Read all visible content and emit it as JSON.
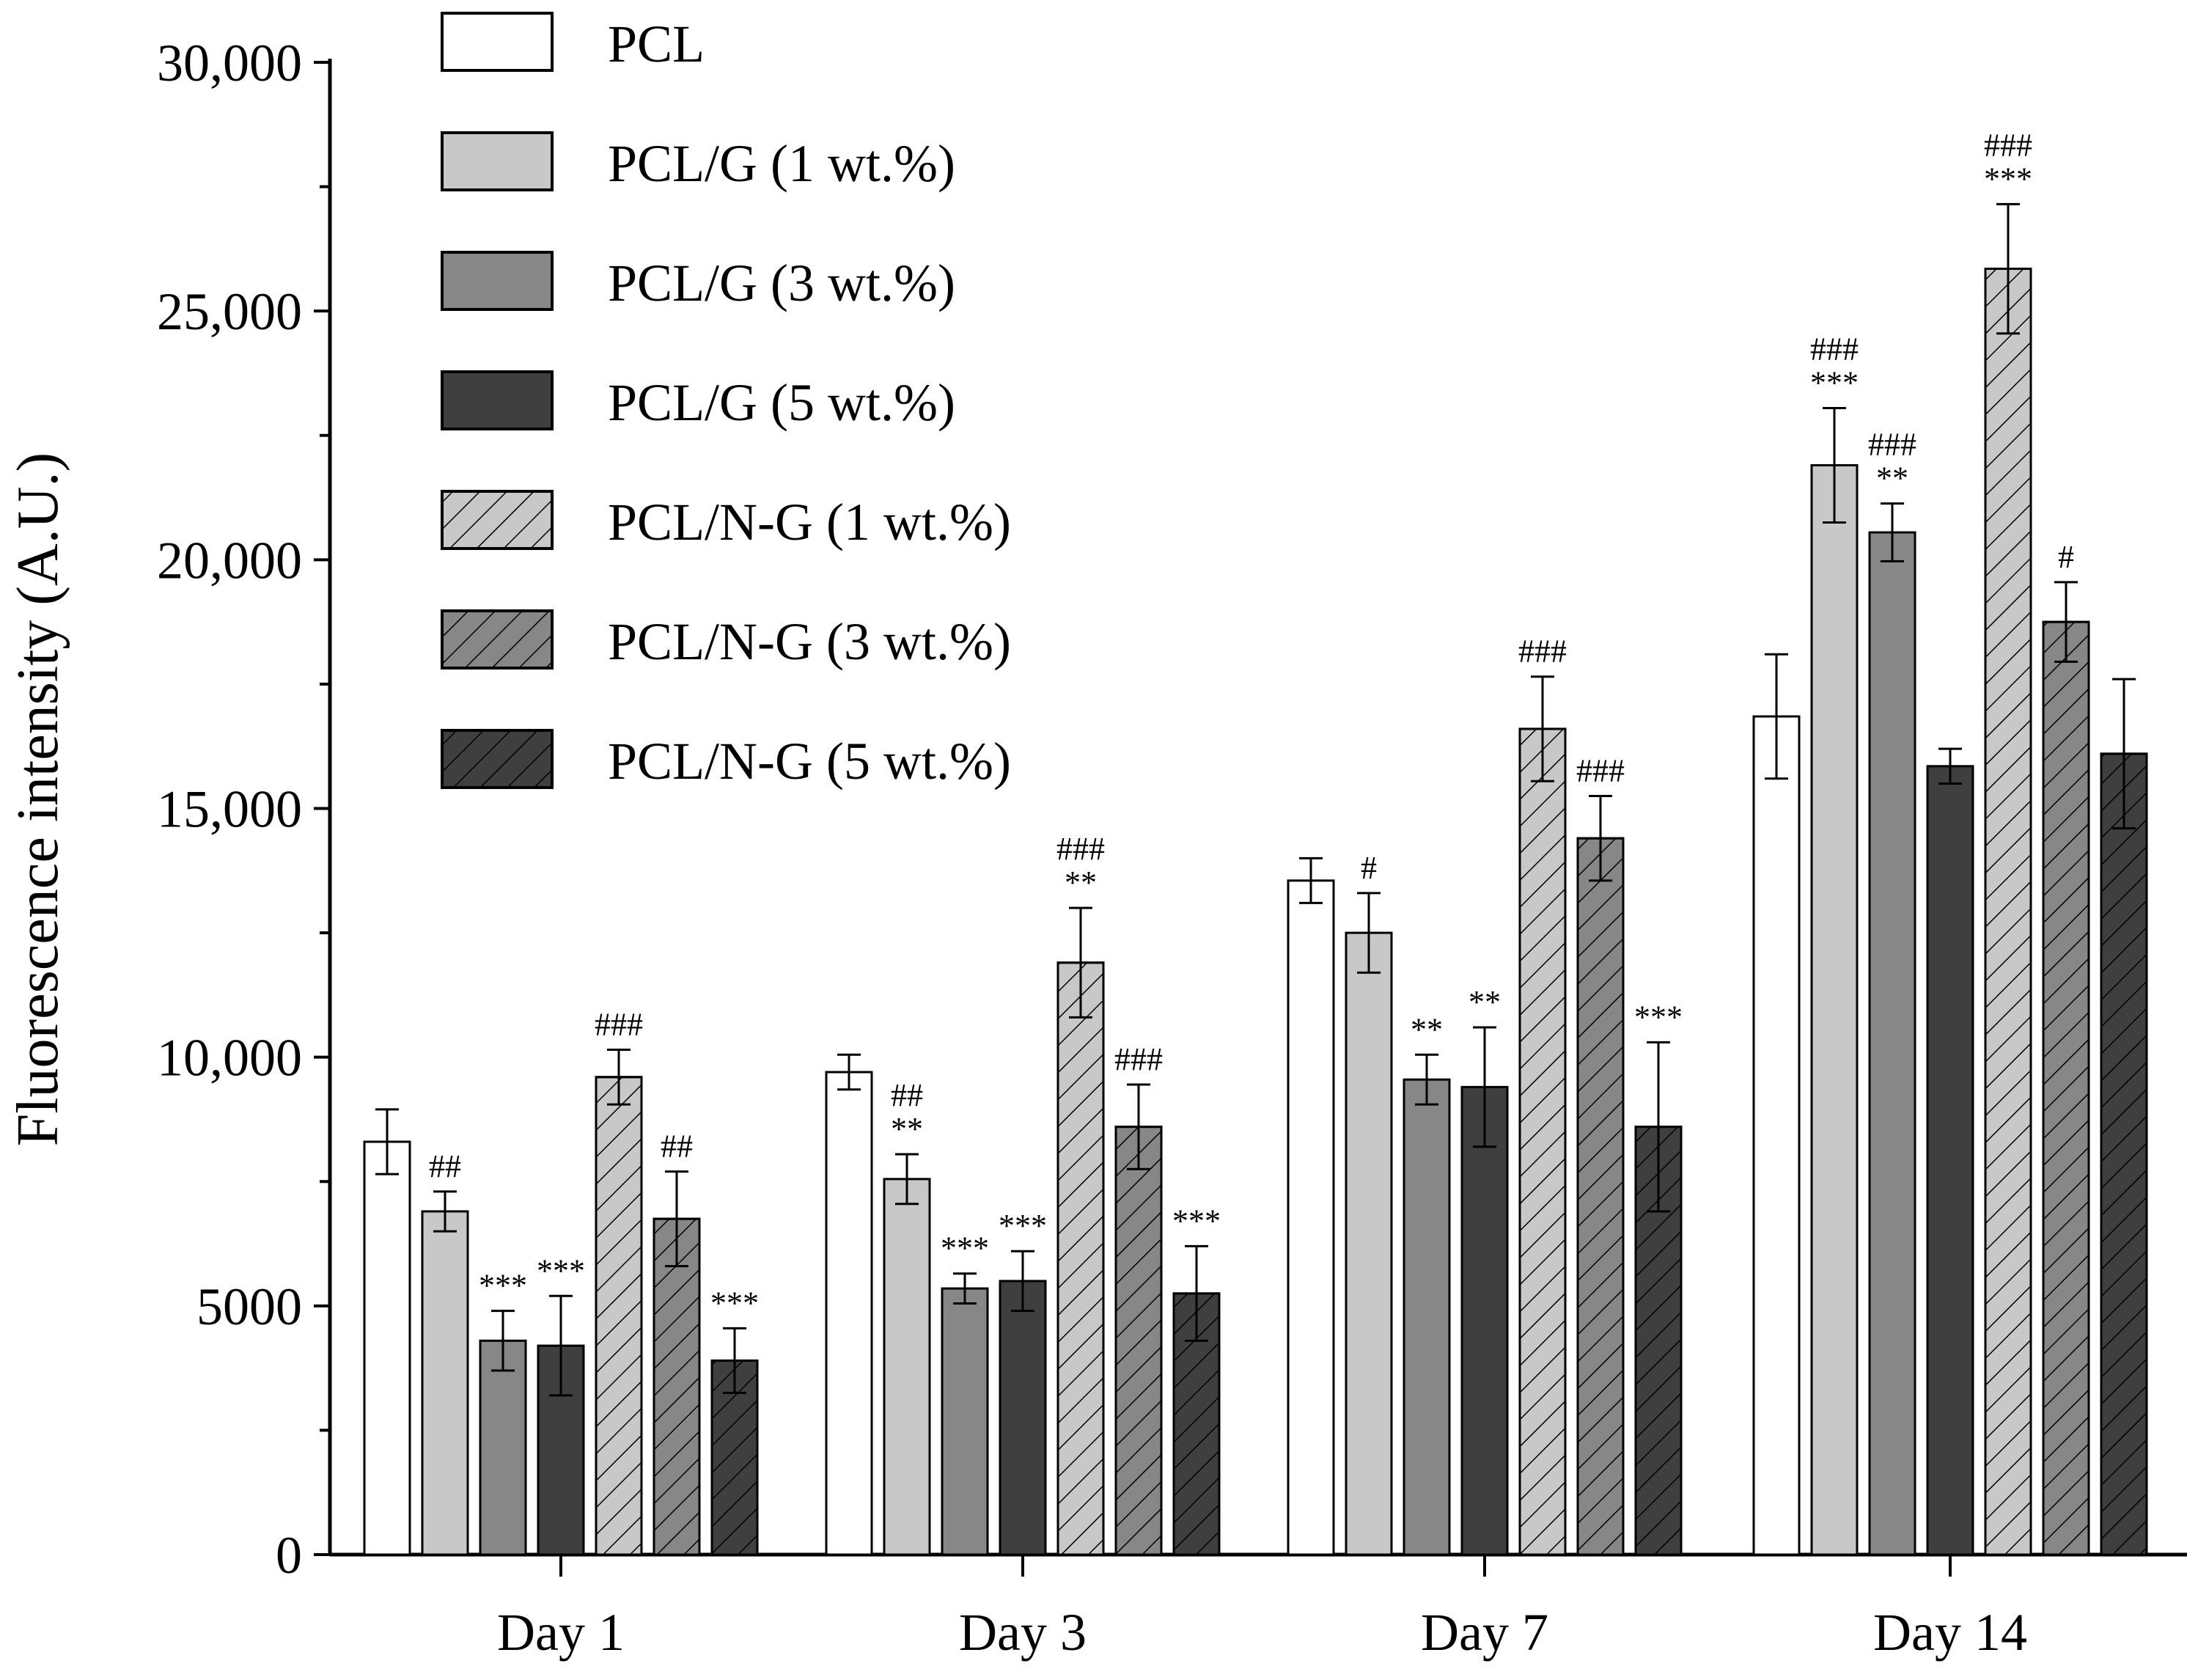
{
  "chart_data": {
    "type": "bar",
    "title": "",
    "xlabel": "",
    "ylabel": "Fluorescence intensity (A.U.)",
    "ylim": [
      0,
      30000
    ],
    "ytick_values": [
      0,
      5000,
      10000,
      15000,
      20000,
      25000,
      30000
    ],
    "ytick_labels": [
      "0",
      "5000",
      "10,000",
      "15,000",
      "20,000",
      "25,000",
      "30,000"
    ],
    "grid": false,
    "legend_position": "top-left",
    "categories": [
      "Day 1",
      "Day 3",
      "Day 7",
      "Day 14"
    ],
    "series": [
      {
        "name": "PCL",
        "fill": "#ffffff",
        "hatch": false,
        "values": [
          8300,
          9700,
          13550,
          16850
        ],
        "errors": [
          650,
          350,
          450,
          1250
        ],
        "annotations": [
          "",
          "",
          "",
          ""
        ]
      },
      {
        "name": "PCL/G (1 wt.%)",
        "fill": "#c8c8c8",
        "hatch": false,
        "values": [
          6900,
          7550,
          12500,
          21900
        ],
        "errors": [
          400,
          500,
          800,
          1150
        ],
        "annotations": [
          "##",
          "##\n**",
          "#",
          "###\n***"
        ]
      },
      {
        "name": "PCL/G (3 wt.%)",
        "fill": "#878787",
        "hatch": false,
        "values": [
          4300,
          5350,
          9550,
          20550
        ],
        "errors": [
          600,
          300,
          500,
          580
        ],
        "annotations": [
          "***",
          "***",
          "**",
          "###\n**"
        ]
      },
      {
        "name": "PCL/G (5 wt.%)",
        "fill": "#3f3f3f",
        "hatch": false,
        "values": [
          4200,
          5500,
          9400,
          15850
        ],
        "errors": [
          1000,
          600,
          1200,
          350
        ],
        "annotations": [
          "***",
          "***",
          "**",
          ""
        ]
      },
      {
        "name": "PCL/N-G (1 wt.%)",
        "fill": "#c8c8c8",
        "hatch": true,
        "values": [
          9600,
          11900,
          16600,
          25850
        ],
        "errors": [
          550,
          1100,
          1050,
          1300
        ],
        "annotations": [
          "###",
          "###\n**",
          "###",
          "###\n***"
        ]
      },
      {
        "name": "PCL/N-G (3 wt.%)",
        "fill": "#878787",
        "hatch": true,
        "values": [
          6750,
          8600,
          14400,
          18750
        ],
        "errors": [
          950,
          850,
          850,
          800
        ],
        "annotations": [
          "##",
          "###",
          "###",
          "#"
        ]
      },
      {
        "name": "PCL/N-G (5 wt.%)",
        "fill": "#3f3f3f",
        "hatch": true,
        "values": [
          3900,
          5250,
          8600,
          16100
        ],
        "errors": [
          650,
          950,
          1700,
          1500
        ],
        "annotations": [
          "***",
          "***",
          "***",
          ""
        ]
      }
    ]
  }
}
